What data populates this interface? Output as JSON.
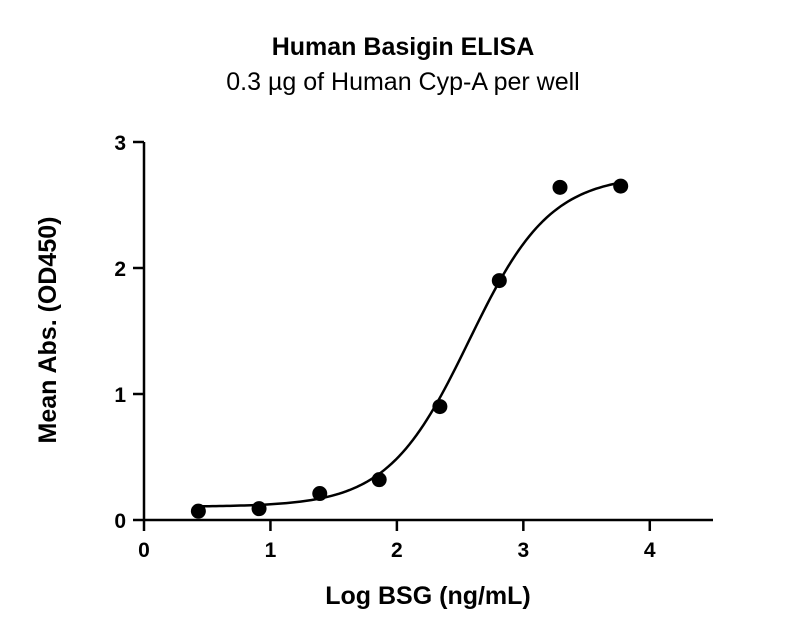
{
  "chart_data": {
    "type": "scatter",
    "title": "Human Basigin ELISA",
    "subtitle": "0.3 µg of Human Cyp-A per well",
    "xlabel": "Log BSG (ng/mL)",
    "ylabel": "Mean  Abs. (OD450)",
    "xlim": [
      0,
      4.5
    ],
    "ylim": [
      0,
      3
    ],
    "xticks": [
      "0",
      "1",
      "2",
      "3",
      "4"
    ],
    "yticks": [
      "0",
      "1",
      "2",
      "3"
    ],
    "grid": false,
    "points": [
      {
        "x": 0.43,
        "y": 0.07
      },
      {
        "x": 0.91,
        "y": 0.09
      },
      {
        "x": 1.39,
        "y": 0.21
      },
      {
        "x": 1.86,
        "y": 0.32
      },
      {
        "x": 2.34,
        "y": 0.9
      },
      {
        "x": 2.81,
        "y": 1.9
      },
      {
        "x": 3.29,
        "y": 2.64
      },
      {
        "x": 3.77,
        "y": 2.65
      }
    ],
    "fit": {
      "model": "4PL",
      "bottom": 0.105,
      "top": 2.74,
      "logEC50": 2.57,
      "hill": 1.35,
      "x_range": [
        0.43,
        3.77
      ]
    }
  }
}
